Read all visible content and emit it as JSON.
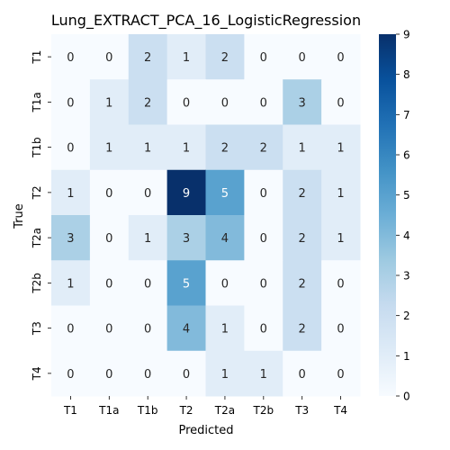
{
  "chart_data": {
    "type": "heatmap",
    "title": "Lung_EXTRACT_PCA_16_LogisticRegression",
    "xlabel": "Predicted",
    "ylabel": "True",
    "x_categories": [
      "T1",
      "T1a",
      "T1b",
      "T2",
      "T2a",
      "T2b",
      "T3",
      "T4"
    ],
    "y_categories": [
      "T1",
      "T1a",
      "T1b",
      "T2",
      "T2a",
      "T2b",
      "T3",
      "T4"
    ],
    "values": [
      [
        0,
        0,
        2,
        1,
        2,
        0,
        0,
        0
      ],
      [
        0,
        1,
        2,
        0,
        0,
        0,
        3,
        0
      ],
      [
        0,
        1,
        1,
        1,
        2,
        2,
        1,
        1
      ],
      [
        1,
        0,
        0,
        9,
        5,
        0,
        2,
        1
      ],
      [
        3,
        0,
        1,
        3,
        4,
        0,
        2,
        1
      ],
      [
        1,
        0,
        0,
        5,
        0,
        0,
        2,
        0
      ],
      [
        0,
        0,
        0,
        4,
        1,
        0,
        2,
        0
      ],
      [
        0,
        0,
        0,
        0,
        1,
        1,
        0,
        0
      ]
    ],
    "vmin": 0,
    "vmax": 9,
    "colorbar_ticks": [
      0,
      1,
      2,
      3,
      4,
      5,
      6,
      7,
      8,
      9
    ],
    "colormap": [
      "#f7fbff",
      "#deebf7",
      "#c6dbef",
      "#9ecae1",
      "#6baed6",
      "#4292c6",
      "#2171b5",
      "#08519c",
      "#08306b"
    ]
  }
}
